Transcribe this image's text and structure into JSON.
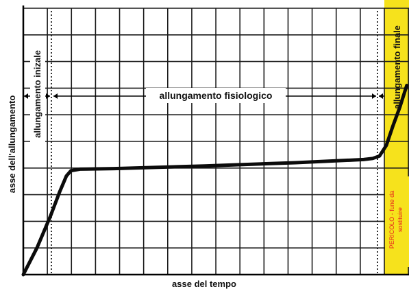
{
  "chart_data": {
    "type": "line",
    "title": "",
    "xlabel": "asse del tempo",
    "ylabel": "asse dell'allungamento",
    "grid": true,
    "series": [
      {
        "name": "",
        "points": [
          [
            0,
            0
          ],
          [
            0.6,
            1.0
          ],
          [
            1.2,
            2.2
          ],
          [
            1.6,
            3.1
          ],
          [
            1.9,
            3.7
          ],
          [
            2.1,
            3.9
          ],
          [
            2.5,
            3.96
          ],
          [
            4,
            3.98
          ],
          [
            8,
            4.08
          ],
          [
            12,
            4.2
          ],
          [
            15,
            4.32
          ],
          [
            15.4,
            4.36
          ],
          [
            15.7,
            4.45
          ],
          [
            16,
            4.85
          ],
          [
            16.3,
            5.6
          ],
          [
            16.6,
            6.3
          ],
          [
            16.9,
            7.1
          ]
        ]
      }
    ],
    "xlim": [
      0,
      17
    ],
    "ylim": [
      0,
      10
    ],
    "annotations": {
      "initial_label": "allungamento inizale",
      "physiological_label": "allungamento fisiologico",
      "final_label": "allungamento finale",
      "danger_label_line1": "PERICOLO - fune da",
      "danger_label_line2": "sostituire"
    },
    "colors": {
      "danger_zone": "#f6e21c",
      "danger_text": "#e8231e",
      "curve": "#0b0b0b",
      "grid": "#1b1b1b"
    }
  }
}
